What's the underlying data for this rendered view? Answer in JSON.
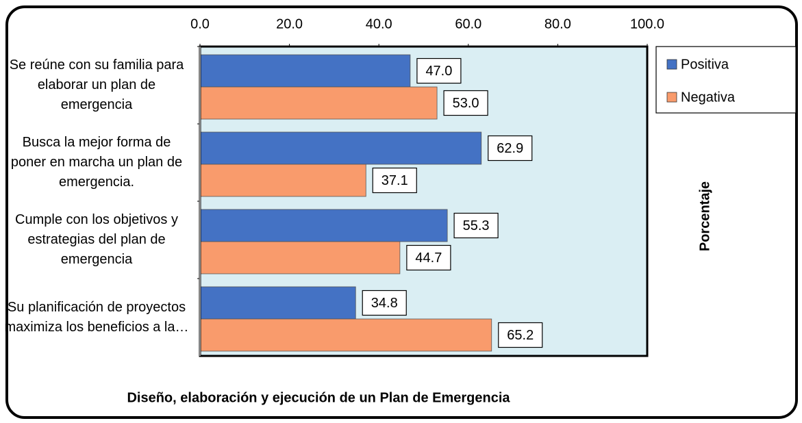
{
  "chart_data": {
    "type": "bar",
    "orientation": "horizontal",
    "x_label": "Porcentaje",
    "y_label": "Diseño, elaboración y ejecución de un Plan de Emergencia",
    "categories": [
      "Se reúne con su familia para elaborar un plan de emergencia",
      "Busca la mejor forma de poner en marcha un plan de emergencia.",
      "Cumple con los objetivos y estrategias del plan de emergencia",
      "Su planificación de proyectos maximiza los beneficios a la…"
    ],
    "series": [
      {
        "name": "Positiva",
        "color": "#4472c4",
        "values": [
          47.0,
          62.9,
          55.3,
          34.8
        ],
        "value_labels": [
          "47.0",
          "62.9",
          "55.3",
          "34.8"
        ]
      },
      {
        "name": "Negativa",
        "color": "#f99b6c",
        "values": [
          53.0,
          37.1,
          44.7,
          65.2
        ],
        "value_labels": [
          "53.0",
          "37.1",
          "44.7",
          "65.2"
        ]
      }
    ],
    "xlim": [
      0,
      100
    ],
    "xticks": [
      {
        "value": 0,
        "label": "0.0"
      },
      {
        "value": 20,
        "label": "20.0"
      },
      {
        "value": 40,
        "label": "40.0"
      },
      {
        "value": 60,
        "label": "60.0"
      },
      {
        "value": 80,
        "label": "80.0"
      },
      {
        "value": 100,
        "label": "100.0"
      }
    ],
    "legend": "right",
    "plot_background": "#daeef3"
  }
}
